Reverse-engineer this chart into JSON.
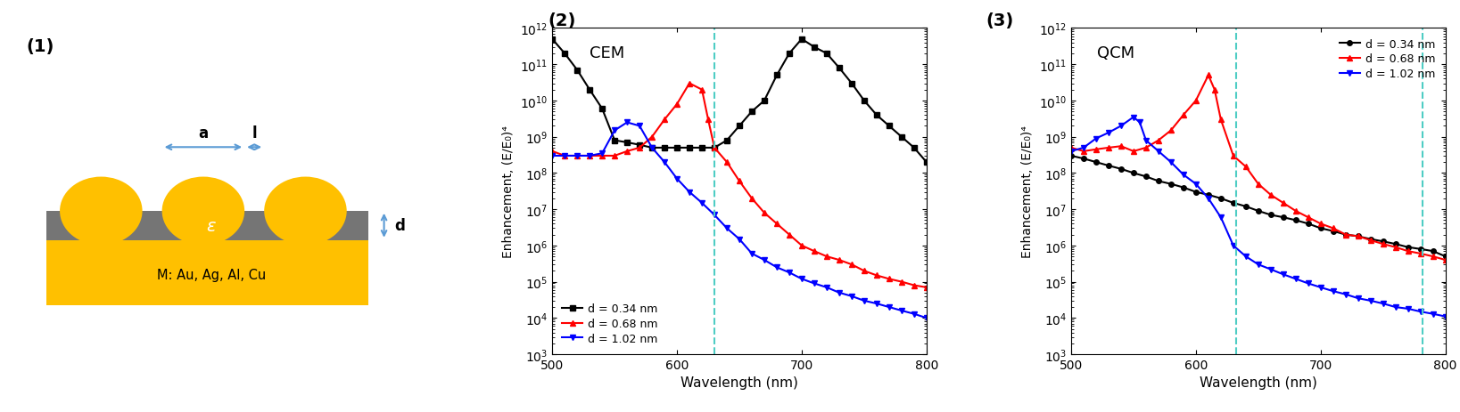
{
  "panel1_label": "(1)",
  "panel2_label": "(2)",
  "panel3_label": "(3)",
  "panel2_title": "CEM",
  "panel3_title": "QCM",
  "xlabel": "Wavelength (nm)",
  "ylabel": "Enhancement, (E/E₀)⁴",
  "xlim": [
    500,
    800
  ],
  "ylim_log_min": 3,
  "ylim_log_max": 12,
  "dashed_line_color": "#4ECDC4",
  "cem_dashed_x": 630,
  "qcm_dashed_x1": 632,
  "qcm_dashed_x2": 782,
  "gold_color": "#FFC000",
  "gray_color": "#757575",
  "arrow_color": "#5B9BD5",
  "legend_labels": [
    "d = 0.34 nm",
    "d = 0.68 nm",
    "d = 1.02 nm"
  ],
  "cem_d034_x": [
    500,
    510,
    520,
    530,
    540,
    550,
    560,
    570,
    580,
    590,
    600,
    610,
    620,
    630,
    640,
    650,
    660,
    670,
    680,
    690,
    700,
    710,
    720,
    730,
    740,
    750,
    760,
    770,
    780,
    790,
    800
  ],
  "cem_d034_y": [
    500000000000.0,
    200000000000.0,
    70000000000.0,
    20000000000.0,
    6000000000.0,
    800000000.0,
    700000000.0,
    600000000.0,
    500000000.0,
    500000000.0,
    500000000.0,
    500000000.0,
    500000000.0,
    500000000.0,
    800000000.0,
    2000000000.0,
    5000000000.0,
    10000000000.0,
    50000000000.0,
    200000000000.0,
    500000000000.0,
    300000000000.0,
    200000000000.0,
    80000000000.0,
    30000000000.0,
    10000000000.0,
    4000000000.0,
    2000000000.0,
    1000000000.0,
    500000000.0,
    200000000.0
  ],
  "cem_d068_x": [
    500,
    510,
    520,
    530,
    540,
    550,
    560,
    570,
    580,
    590,
    600,
    610,
    620,
    625,
    630,
    640,
    650,
    660,
    670,
    680,
    690,
    700,
    710,
    720,
    730,
    740,
    750,
    760,
    770,
    780,
    790,
    800
  ],
  "cem_d068_y": [
    400000000.0,
    300000000.0,
    300000000.0,
    300000000.0,
    300000000.0,
    300000000.0,
    400000000.0,
    500000000.0,
    1000000000.0,
    3000000000.0,
    8000000000.0,
    30000000000.0,
    20000000000.0,
    3000000000.0,
    500000000.0,
    200000000.0,
    60000000.0,
    20000000.0,
    8000000.0,
    4000000.0,
    2000000.0,
    1000000.0,
    700000.0,
    500000.0,
    400000.0,
    300000.0,
    200000.0,
    150000.0,
    120000.0,
    100000.0,
    80000.0,
    70000.0
  ],
  "cem_d102_x": [
    500,
    510,
    520,
    530,
    540,
    550,
    560,
    570,
    580,
    590,
    600,
    610,
    620,
    630,
    640,
    650,
    660,
    670,
    680,
    690,
    700,
    710,
    720,
    730,
    740,
    750,
    760,
    770,
    780,
    790,
    800
  ],
  "cem_d102_y": [
    300000000.0,
    300000000.0,
    300000000.0,
    300000000.0,
    350000000.0,
    1500000000.0,
    2500000000.0,
    2000000000.0,
    500000000.0,
    200000000.0,
    70000000.0,
    30000000.0,
    15000000.0,
    7000000.0,
    3000000.0,
    1500000.0,
    600000.0,
    400000.0,
    250000.0,
    180000.0,
    120000.0,
    90000.0,
    70000.0,
    50000.0,
    40000.0,
    30000.0,
    25000.0,
    20000.0,
    16000.0,
    13000.0,
    10000.0
  ],
  "qcm_d034_x": [
    500,
    510,
    520,
    530,
    540,
    550,
    560,
    570,
    580,
    590,
    600,
    610,
    620,
    630,
    640,
    650,
    660,
    670,
    680,
    690,
    700,
    710,
    720,
    730,
    740,
    750,
    760,
    770,
    780,
    790,
    800
  ],
  "qcm_d034_y": [
    300000000.0,
    250000000.0,
    200000000.0,
    160000000.0,
    130000000.0,
    100000000.0,
    80000000.0,
    60000000.0,
    50000000.0,
    40000000.0,
    30000000.0,
    25000000.0,
    20000000.0,
    15000000.0,
    12000000.0,
    9000000.0,
    7000000.0,
    6000000.0,
    5000000.0,
    4000000.0,
    3000000.0,
    2500000.0,
    2000000.0,
    1800000.0,
    1500000.0,
    1300000.0,
    1100000.0,
    900000.0,
    800000.0,
    700000.0,
    500000.0
  ],
  "qcm_d068_x": [
    500,
    510,
    520,
    530,
    540,
    550,
    560,
    570,
    580,
    590,
    600,
    610,
    615,
    620,
    630,
    640,
    650,
    660,
    670,
    680,
    690,
    700,
    710,
    720,
    730,
    740,
    750,
    760,
    770,
    780,
    790,
    800
  ],
  "qcm_d068_y": [
    500000000.0,
    400000000.0,
    450000000.0,
    500000000.0,
    550000000.0,
    400000000.0,
    500000000.0,
    800000000.0,
    1500000000.0,
    4000000000.0,
    10000000000.0,
    50000000000.0,
    20000000000.0,
    3000000000.0,
    300000000.0,
    150000000.0,
    50000000.0,
    25000000.0,
    15000000.0,
    9000000.0,
    6000000.0,
    4000000.0,
    3000000.0,
    2000000.0,
    1800000.0,
    1400000.0,
    1100000.0,
    900000.0,
    700000.0,
    600000.0,
    500000.0,
    400000.0
  ],
  "qcm_d102_x": [
    500,
    510,
    520,
    530,
    540,
    550,
    555,
    560,
    570,
    580,
    590,
    600,
    610,
    620,
    630,
    640,
    650,
    660,
    670,
    680,
    690,
    700,
    710,
    720,
    730,
    740,
    750,
    760,
    770,
    780,
    790,
    800
  ],
  "qcm_d102_y": [
    400000000.0,
    500000000.0,
    900000000.0,
    1300000000.0,
    2000000000.0,
    3500000000.0,
    2500000000.0,
    800000000.0,
    400000000.0,
    200000000.0,
    90000000.0,
    50000000.0,
    20000000.0,
    6000000.0,
    1000000.0,
    500000.0,
    300000.0,
    220000.0,
    160000.0,
    120000.0,
    90000.0,
    70000.0,
    55000.0,
    45000.0,
    35000.0,
    30000.0,
    25000.0,
    20000.0,
    18000.0,
    15000.0,
    13000.0,
    11000.0
  ]
}
